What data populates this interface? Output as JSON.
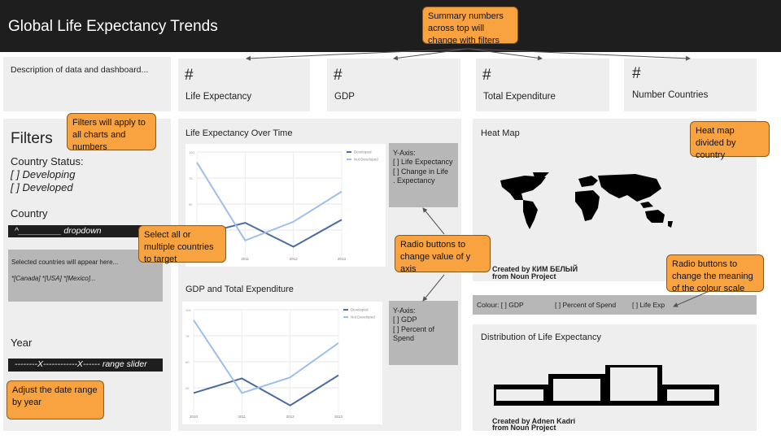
{
  "header": {
    "title": "Global Life Expectancy Trends"
  },
  "description": {
    "text": "Description of data and dashboard..."
  },
  "kpis": [
    {
      "value": "#",
      "label": "Life Expectancy"
    },
    {
      "value": "#",
      "label": "GDP"
    },
    {
      "value": "#",
      "label": "Total Expenditure"
    },
    {
      "value": "#",
      "label": "Number Countries"
    }
  ],
  "filters": {
    "title": "Filters",
    "status_heading": "Country Status:",
    "status_options": [
      "[ ] Developing",
      "[ ] Developed"
    ],
    "country_heading": "Country",
    "dropdown_text": "^_________ dropdown",
    "selected_hint": "Selected countries will appear here...",
    "selected_values": "*[Canada] *[USA] *[Mexico]...",
    "year_heading": "Year",
    "slider_text": "--------X------------X------ range slider"
  },
  "chart1": {
    "title": "Life Expectancy Over Time",
    "yaxis_heading": "Y-Axis:",
    "yaxis_options": [
      "[ ] Life Expectancy",
      "[ ] Change in Life",
      ".  Expectancy"
    ]
  },
  "chart2": {
    "title": "GDP and Total Expenditure",
    "yaxis_heading": "Y-Axis:",
    "yaxis_options": [
      "[ ] GDP",
      "[ ] Percent of Spend"
    ]
  },
  "heatmap": {
    "title": "Heat Map",
    "credit_line1": "Created by КИМ БЕЛЫЙ",
    "credit_line2": "from Noun Project",
    "colour_label": "Colour: [ ] GDP",
    "colour_options": [
      "[ ] Percent of Spend",
      "[ ] Life Exp"
    ]
  },
  "distribution": {
    "title": "Distribution of Life Expectancy",
    "credit_line1": "Created by Adnen Kadri",
    "credit_line2": "from Noun Project"
  },
  "notes": {
    "summary": "Summary numbers across top will change with filters",
    "filters": "Filters will apply to all charts and numbers",
    "heatmap": "Heat map divided by country",
    "select": "Select all or multiple countries to target",
    "radio_y": "Radio buttons to change value of y axis",
    "radio_colour": "Radio buttons to change the meaning of the colour scale",
    "date": "Adjust the date range by year"
  },
  "colors": {
    "developed": "#4a6b9e",
    "not_developed": "#9fbfea",
    "note_fill": "#f8a340",
    "dark": "#1e1e1e"
  },
  "chart_data": [
    {
      "type": "line",
      "y_tick_labels": [
        "100",
        "75",
        "50",
        "25"
      ],
      "x_tick_labels": [
        "2011",
        "2012",
        "2013"
      ],
      "series": [
        {
          "name": "Developed",
          "values": [
            20,
            32,
            9,
            35
          ]
        },
        {
          "name": "Not Developed",
          "values": [
            90,
            15,
            33,
            62
          ]
        }
      ]
    },
    {
      "type": "line",
      "y_tick_labels": [
        "100",
        "75",
        "50",
        "25"
      ],
      "x_tick_labels": [
        "2010",
        "2011",
        "2012",
        "2013"
      ],
      "series": [
        {
          "name": "Developed",
          "values": [
            20,
            34,
            8,
            37
          ]
        },
        {
          "name": "Not Developed",
          "values": [
            90,
            20,
            35,
            68
          ]
        }
      ]
    }
  ]
}
